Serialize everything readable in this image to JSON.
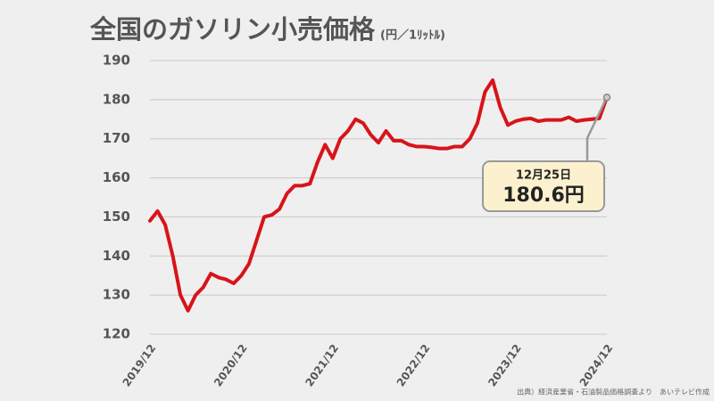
{
  "chart_data": {
    "type": "line",
    "title": "全国のガソリン小売価格",
    "unit": "(円／1ﾘｯﾄﾙ)",
    "source": "出典）経済産業省・石油製品価格調査より　あいテレビ作成",
    "categories": [
      "2019/12",
      null,
      null,
      null,
      null,
      null,
      null,
      null,
      null,
      null,
      null,
      null,
      "2020/12",
      null,
      null,
      null,
      null,
      null,
      null,
      null,
      null,
      null,
      null,
      null,
      "2021/12",
      null,
      null,
      null,
      null,
      null,
      null,
      null,
      null,
      null,
      null,
      null,
      "2022/12",
      null,
      null,
      null,
      null,
      null,
      null,
      null,
      null,
      null,
      null,
      null,
      "2023/12",
      null,
      null,
      null,
      null,
      null,
      null,
      null,
      null,
      null,
      null,
      null,
      "2024/12"
    ],
    "values": [
      149,
      151.5,
      148,
      140,
      130,
      126,
      130,
      132,
      135.5,
      134.5,
      134,
      133,
      135,
      138,
      144,
      150,
      150.5,
      152,
      156,
      158,
      158,
      158.5,
      164,
      168.5,
      165,
      170,
      172,
      175,
      174,
      171,
      169,
      172,
      169.5,
      169.5,
      168.5,
      168,
      168,
      167.8,
      167.5,
      167.5,
      168,
      168,
      170,
      174,
      182,
      185,
      178,
      173.5,
      174.5,
      175,
      175.2,
      174.5,
      174.8,
      174.8,
      174.8,
      175.5,
      174.5,
      174.8,
      175,
      175.2,
      180.6
    ],
    "color": "#d7141a",
    "ylim": [
      120,
      190
    ],
    "yticks": [
      120,
      130,
      140,
      150,
      160,
      170,
      180,
      190
    ],
    "grid": true,
    "annotation": {
      "date": "12月25日",
      "text": "180.6円"
    }
  }
}
